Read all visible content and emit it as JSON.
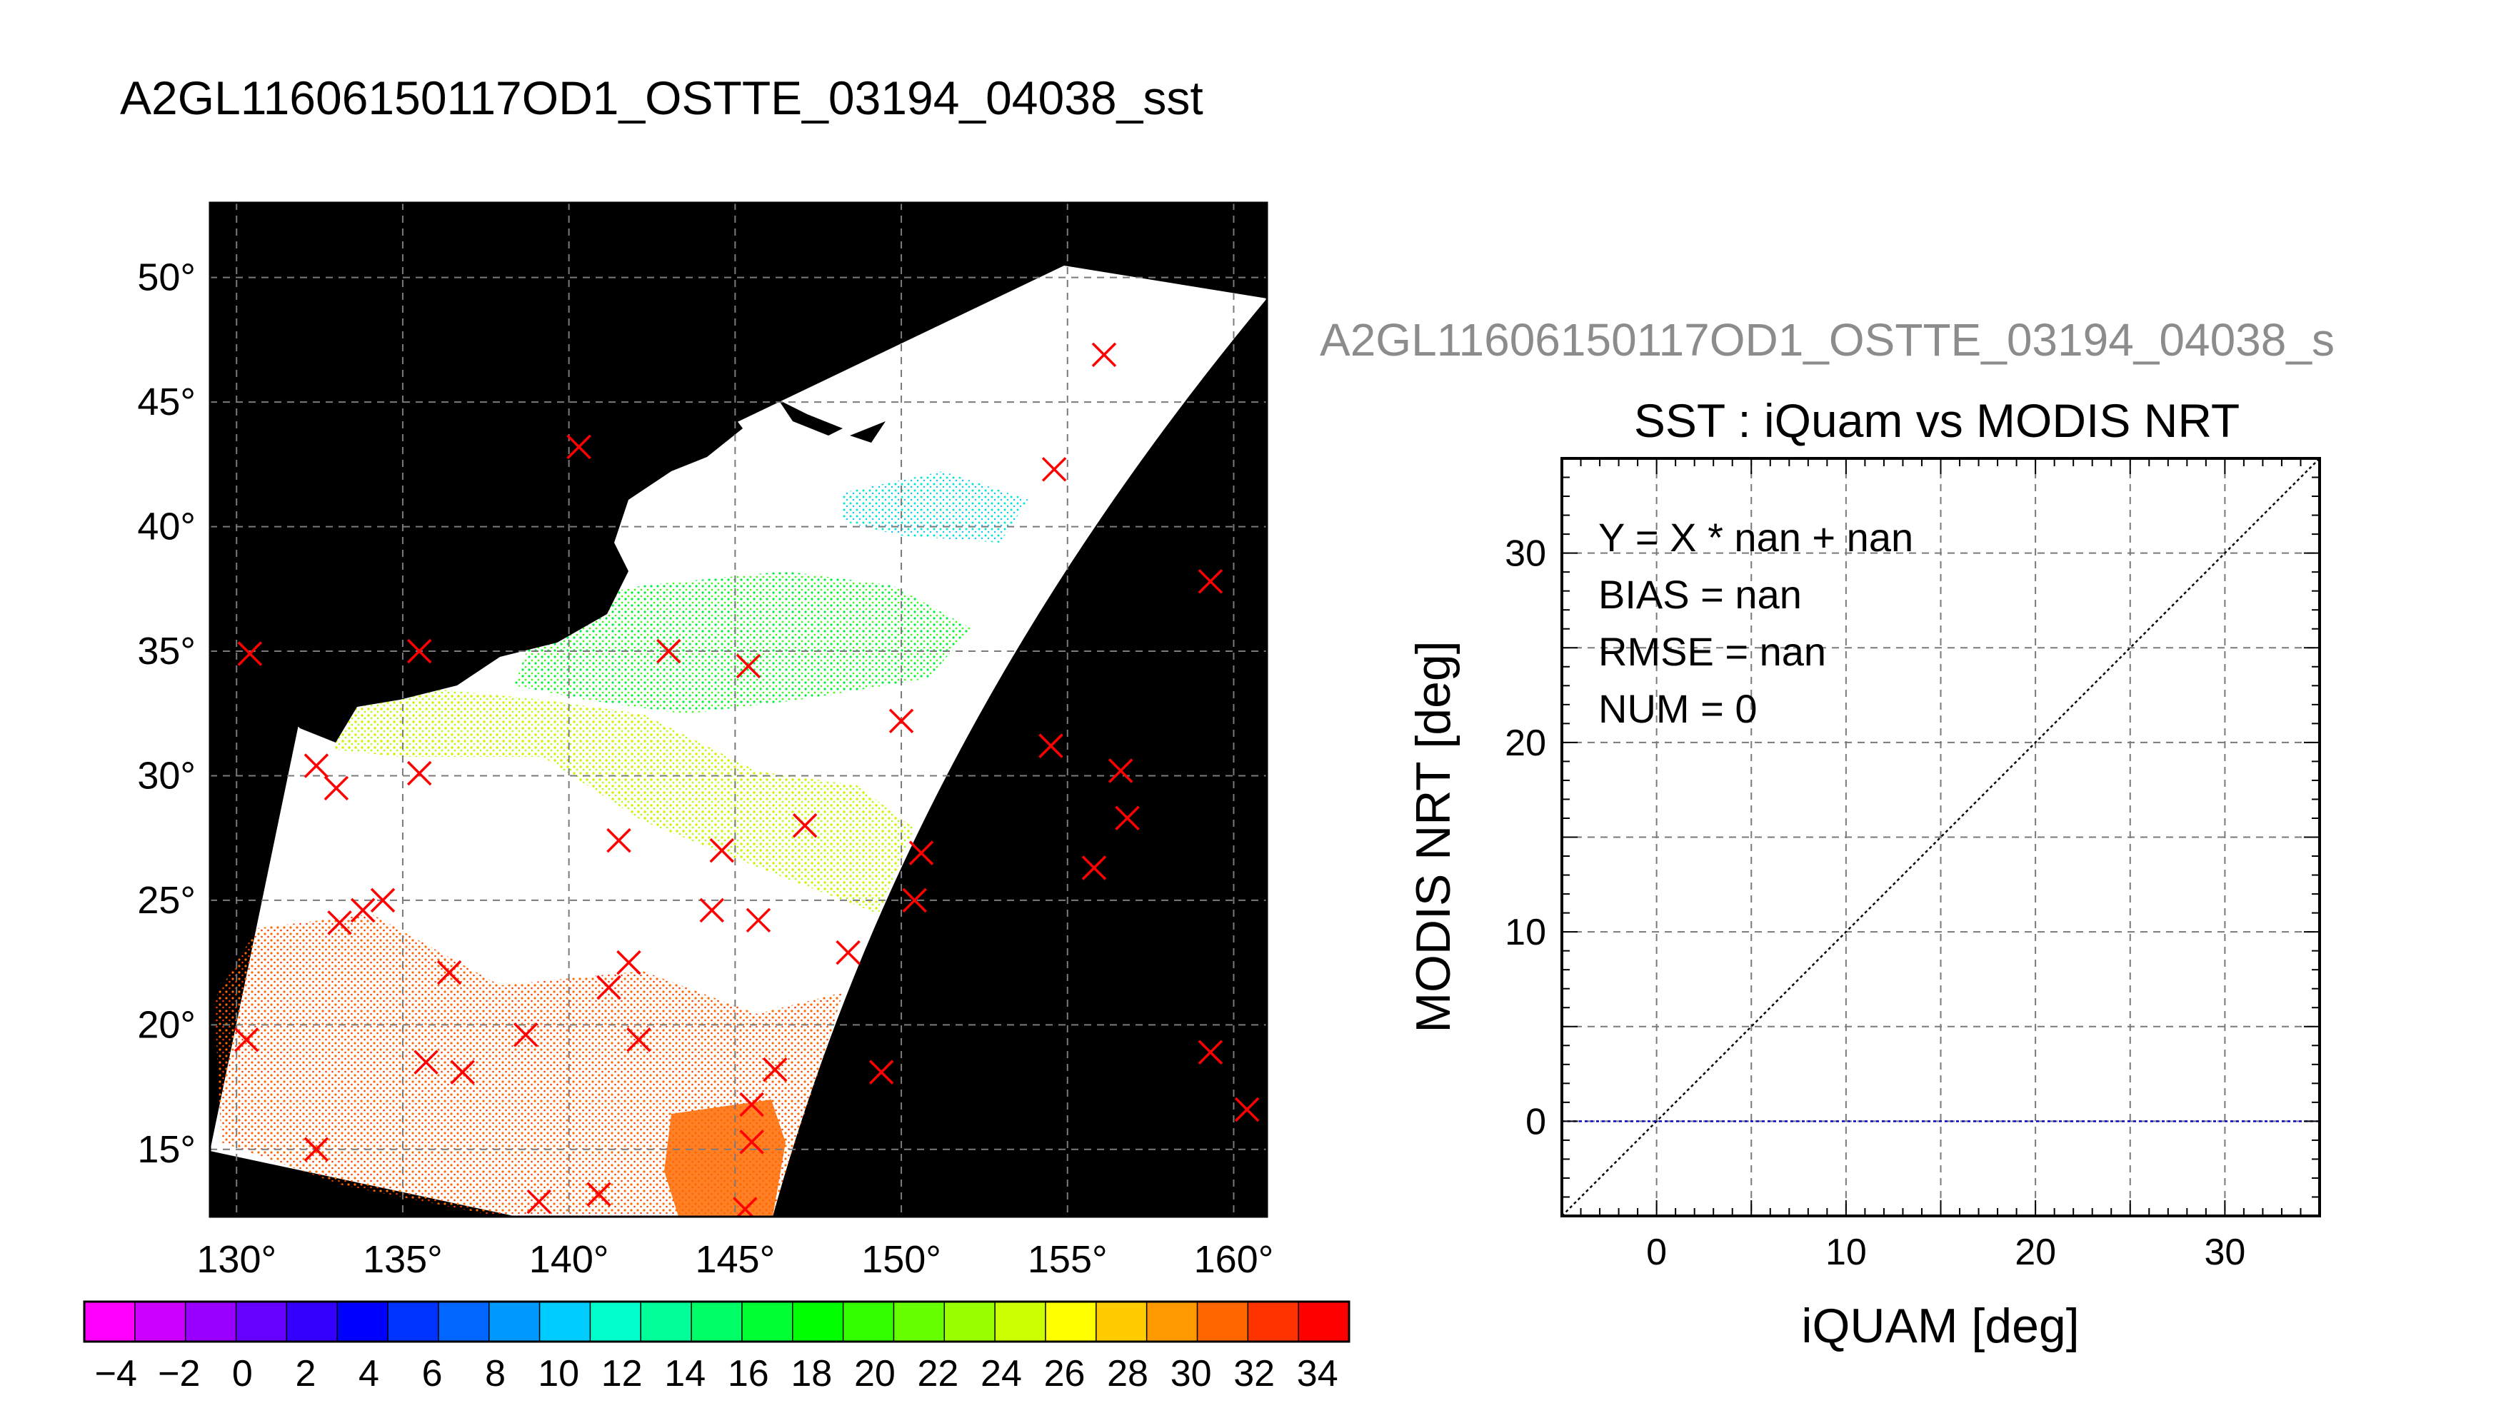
{
  "page_title": "A2GL11606150117OD1_OSTTE_03194_04038_sst",
  "map": {
    "lon_ticks": [
      130,
      135,
      140,
      145,
      150,
      155,
      160
    ],
    "lat_ticks": [
      15,
      20,
      25,
      30,
      35,
      40,
      45,
      50
    ],
    "lon_range": [
      129.2,
      161.0
    ],
    "lat_range": [
      12.3,
      53.0
    ],
    "degree_symbol": "°",
    "land_color": "#000000",
    "swath_color": "#ffffff",
    "marker_color": "#ff0000",
    "markers": [
      [
        135.5,
        35
      ],
      [
        130.4,
        34.9
      ],
      [
        132.4,
        30.4
      ],
      [
        133.0,
        29.5
      ],
      [
        135.5,
        30.1
      ],
      [
        143.0,
        35.0
      ],
      [
        145.4,
        34.4
      ],
      [
        150.0,
        32.2
      ],
      [
        140.3,
        43.2
      ],
      [
        154.6,
        42.3
      ],
      [
        156.1,
        46.9
      ],
      [
        159.3,
        37.8
      ],
      [
        154.5,
        31.2
      ],
      [
        156.6,
        30.2
      ],
      [
        156.8,
        28.3
      ],
      [
        155.8,
        26.3
      ],
      [
        159.3,
        18.9
      ],
      [
        160.4,
        16.6
      ],
      [
        147.1,
        28.0
      ],
      [
        144.6,
        27.0
      ],
      [
        141.5,
        27.4
      ],
      [
        150.6,
        26.9
      ],
      [
        150.4,
        25.0
      ],
      [
        148.4,
        22.9
      ],
      [
        145.7,
        24.2
      ],
      [
        144.3,
        24.6
      ],
      [
        141.8,
        22.5
      ],
      [
        141.2,
        21.5
      ],
      [
        142.1,
        19.4
      ],
      [
        138.7,
        19.6
      ],
      [
        136.4,
        22.1
      ],
      [
        134.4,
        25.0
      ],
      [
        133.8,
        24.6
      ],
      [
        133.1,
        24.1
      ],
      [
        130.3,
        19.4
      ],
      [
        135.7,
        18.5
      ],
      [
        136.8,
        18.1
      ],
      [
        146.2,
        18.2
      ],
      [
        145.5,
        16.8
      ],
      [
        145.5,
        15.3
      ],
      [
        145.3,
        12.6
      ],
      [
        140.9,
        13.2
      ],
      [
        139.1,
        12.9
      ],
      [
        132.4,
        15.0
      ],
      [
        149.4,
        18.1
      ]
    ]
  },
  "colorbar": {
    "ticks": [
      "−4",
      "−2",
      "0",
      "2",
      "4",
      "6",
      "8",
      "10",
      "12",
      "14",
      "16",
      "18",
      "20",
      "22",
      "24",
      "26",
      "28",
      "30",
      "32",
      "34"
    ],
    "min": -5,
    "max": 35,
    "colors": [
      "#ff00ff",
      "#cc00ff",
      "#9900ff",
      "#6600ff",
      "#3300ff",
      "#0000ff",
      "#0033ff",
      "#0066ff",
      "#0099ff",
      "#00ccff",
      "#00ffcc",
      "#00ff99",
      "#00ff66",
      "#00ff33",
      "#00ff00",
      "#33ff00",
      "#66ff00",
      "#99ff00",
      "#ccff00",
      "#ffff00",
      "#ffcc00",
      "#ff9900",
      "#ff6600",
      "#ff3300",
      "#ff0000"
    ]
  },
  "scatter": {
    "overflow_title": "A2GL11606150117OD1_OSTTE_03194_04038_s",
    "title": "SST : iQuam vs MODIS NRT",
    "xlabel": "iQUAM [deg]",
    "ylabel": "MODIS NRT [deg]",
    "stats": [
      "Y = X * nan + nan",
      "BIAS = nan",
      "RMSE = nan",
      "NUM = 0"
    ]
  },
  "chart_data": [
    {
      "type": "scatter",
      "title": "SST : iQuam vs MODIS NRT",
      "xlabel": "iQUAM [deg]",
      "ylabel": "MODIS NRT [deg]",
      "xlim": [
        -5,
        35
      ],
      "ylim": [
        -5,
        35
      ],
      "xticks": [
        0,
        10,
        20,
        30
      ],
      "yticks": [
        0,
        10,
        20,
        30
      ],
      "grid": true,
      "series": [
        {
          "values": []
        }
      ],
      "reference_lines": [
        {
          "kind": "1:1 line",
          "x": [
            -5,
            35
          ],
          "y": [
            -5,
            35
          ],
          "color": "#000000"
        },
        {
          "kind": "zero line",
          "x": [
            -5,
            35
          ],
          "y": [
            0,
            0
          ],
          "color": "#0000cc"
        }
      ]
    }
  ]
}
